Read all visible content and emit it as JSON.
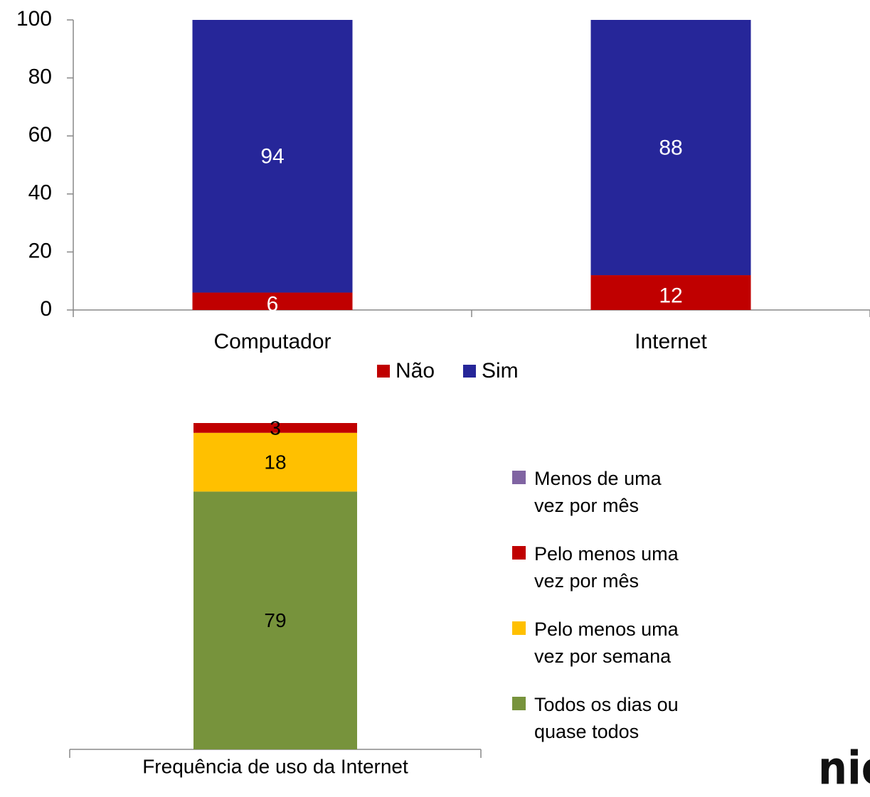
{
  "chart_data": [
    {
      "type": "bar",
      "stacked": true,
      "categories": [
        "Computador",
        "Internet"
      ],
      "series": [
        {
          "name": "Não",
          "color": "#c00000",
          "values": [
            6,
            12
          ]
        },
        {
          "name": "Sim",
          "color": "#262699",
          "values": [
            94,
            88
          ]
        }
      ],
      "ylim": [
        0,
        100
      ],
      "yticks": [
        0,
        20,
        40,
        60,
        80,
        100
      ],
      "legend": "bottom"
    },
    {
      "type": "bar",
      "stacked": true,
      "categories": [
        "Frequência de uso da Internet"
      ],
      "series": [
        {
          "name": "Todos os dias ou quase todos",
          "color": "#77933c",
          "values": [
            79
          ]
        },
        {
          "name": "Pelo menos uma vez por semana",
          "color": "#ffc000",
          "values": [
            18
          ]
        },
        {
          "name": "Pelo menos uma vez por mês",
          "color": "#c00000",
          "values": [
            3
          ]
        },
        {
          "name": "Menos de uma vez por mês",
          "color": "#8064a2",
          "values": [
            0
          ]
        }
      ],
      "legend": "right"
    }
  ],
  "logo": "nic"
}
